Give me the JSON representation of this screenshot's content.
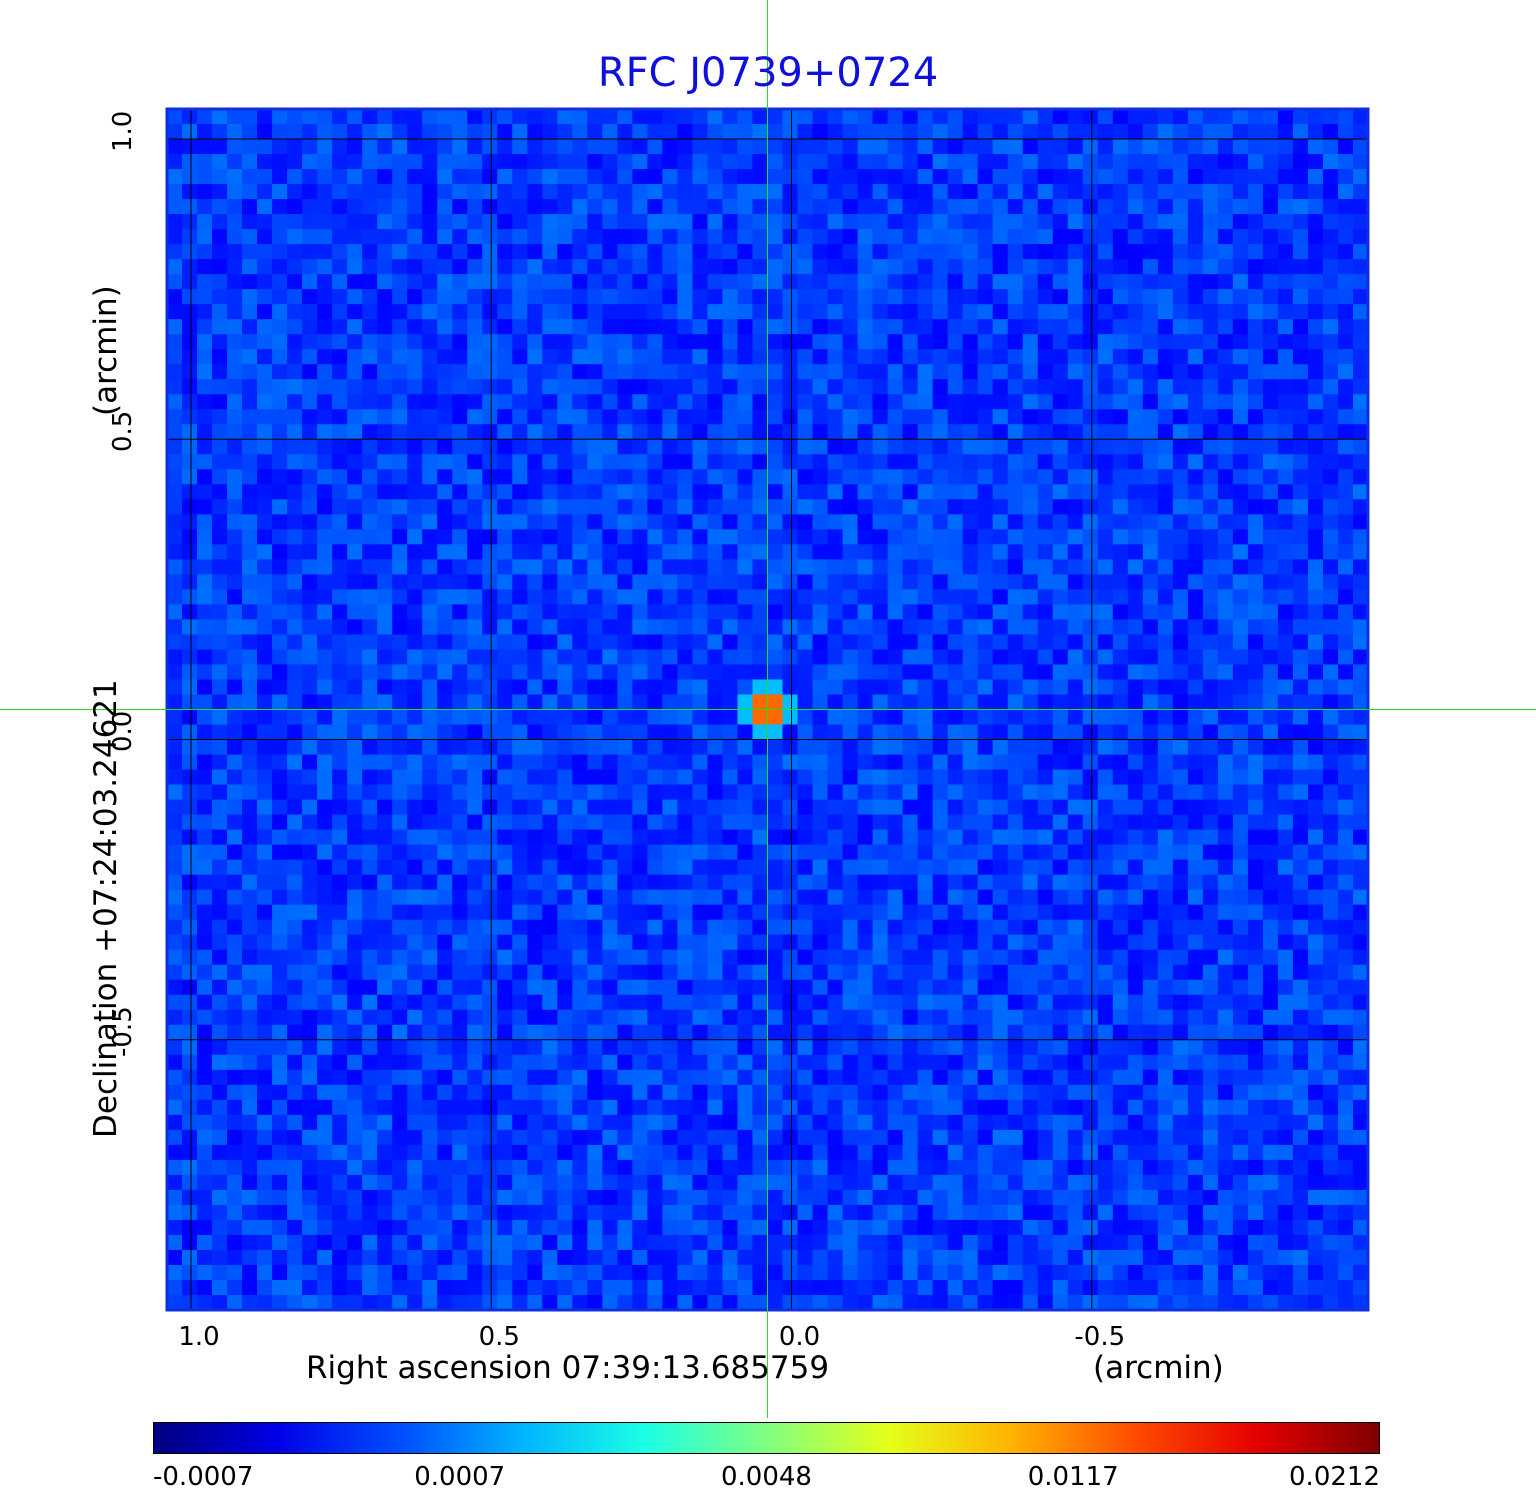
{
  "chart_data": {
    "type": "heatmap",
    "title": "RFC J0739+0724",
    "xlabel": "Right ascension  07:39:13.685759",
    "xunit": "(arcmin)",
    "ylabel": "Declination  +07:24:03.24621",
    "yunit": "(arcmin)",
    "xlim": [
      1.04,
      -0.96
    ],
    "ylim": [
      -0.95,
      1.05
    ],
    "x_direction": "decreasing",
    "xticks": [
      1.0,
      0.5,
      0.0,
      -0.5
    ],
    "xtick_labels": [
      "1.0",
      "0.5",
      "0.0",
      "-0.5"
    ],
    "yticks": [
      1.0,
      0.5,
      0.0,
      -0.5
    ],
    "ytick_labels": [
      "1.0",
      "0.5",
      "0.0",
      "-0.5"
    ],
    "grid": true,
    "source": {
      "x": 0.04,
      "y": 0.05,
      "peak": 0.0212
    },
    "crosshair": {
      "x": 0.04,
      "y": 0.05,
      "color": "#22dd22"
    },
    "colorscale": "jet",
    "colorbar": {
      "placement": "bottom",
      "tick_labels": [
        "-0.0007",
        "0.0007",
        "0.0048",
        "0.0117",
        "0.0212"
      ]
    }
  }
}
